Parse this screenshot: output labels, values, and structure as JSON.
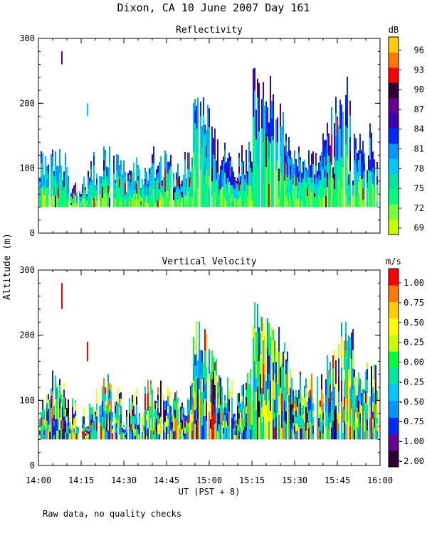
{
  "title": "Dixon, CA 10 June 2007  Day 161",
  "ylabel": "Altitude (m)",
  "xlabel": "UT  (PST + 8)",
  "footnote": "Raw data, no quality checks",
  "chart_data": [
    {
      "type": "heatmap",
      "title": "Reflectivity",
      "units": "dB",
      "ylim": [
        0,
        300
      ],
      "y_ticks": [
        0,
        100,
        200,
        300
      ],
      "x_range": [
        "14:00",
        "16:00"
      ],
      "x_ticks": [
        "14:00",
        "14:15",
        "14:30",
        "14:45",
        "15:00",
        "15:15",
        "15:30",
        "15:45",
        "16:00"
      ],
      "colorbar_range": [
        68,
        98
      ],
      "colorbar_ticks": [
        96,
        93,
        90,
        87,
        84,
        81,
        78,
        75,
        72,
        69
      ],
      "colorbar_colors": [
        "#c8ff00",
        "#78ff3c",
        "#00ff78",
        "#00e6a0",
        "#00c8ff",
        "#0096ff",
        "#0028ff",
        "#3c00b4",
        "#640096",
        "#300030",
        "#ff0000",
        "#ff7800",
        "#ffcc00"
      ],
      "dominant_color_by_altitude": [
        {
          "altitude_m": 40,
          "color": "#78ff3c"
        },
        {
          "altitude_m": 60,
          "color": "#00e6a0"
        },
        {
          "altitude_m": 90,
          "color": "#00c8ff"
        },
        {
          "altitude_m": 140,
          "color": "#0028ff"
        },
        {
          "altitude_m": 200,
          "color": "#3c00b4"
        }
      ],
      "data_bottom_m": 40
    },
    {
      "type": "heatmap",
      "title": "Vertical Velocity",
      "units": "m/s",
      "ylim": [
        0,
        300
      ],
      "y_ticks": [
        0,
        100,
        200,
        300
      ],
      "x_range": [
        "14:00",
        "16:00"
      ],
      "x_ticks": [
        "14:00",
        "14:15",
        "14:30",
        "14:45",
        "15:00",
        "15:15",
        "15:30",
        "15:45",
        "16:00"
      ],
      "colorbar_ticks": [
        "1.00",
        "0.75",
        "0.50",
        "0.25",
        "0.00",
        "-0.25",
        "-0.50",
        "-0.75",
        "-1.00",
        "-2.00"
      ],
      "colorbar_colors": [
        "#300030",
        "#640096",
        "#0028ff",
        "#0096ff",
        "#00c8ff",
        "#00e6a0",
        "#00ff3c",
        "#c8ff00",
        "#ffff00",
        "#ffcc00",
        "#ff7800",
        "#ff0000"
      ],
      "data_bottom_m": 40
    }
  ]
}
